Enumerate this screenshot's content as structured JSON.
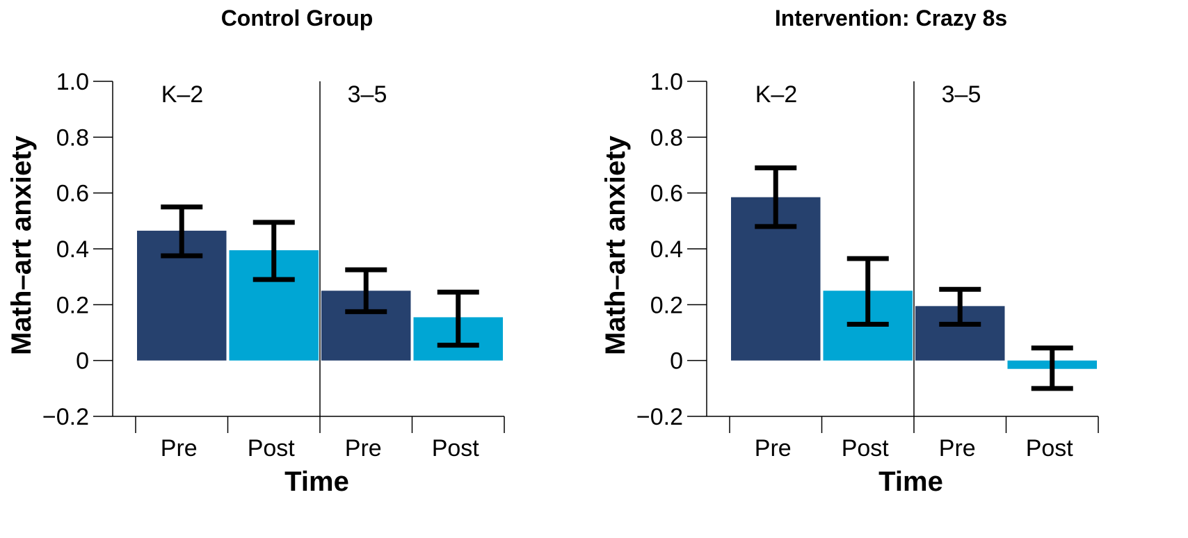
{
  "chart_data": [
    {
      "type": "bar",
      "title": "Control Group",
      "xlabel": "Time",
      "ylabel": "Math–art anxiety",
      "ylim": [
        -0.2,
        1.0
      ],
      "yticks": [
        "1.0",
        "0.8",
        "0.6",
        "0.4",
        "0.2",
        "0",
        "−0.2"
      ],
      "ytick_values": [
        1.0,
        0.8,
        0.6,
        0.4,
        0.2,
        0,
        -0.2
      ],
      "groups": [
        "K–2",
        "3–5"
      ],
      "categories": [
        "Pre",
        "Post",
        "Pre",
        "Post"
      ],
      "values": [
        0.465,
        0.395,
        0.25,
        0.155
      ],
      "error_low": [
        0.375,
        0.29,
        0.175,
        0.055
      ],
      "error_high": [
        0.55,
        0.495,
        0.325,
        0.245
      ],
      "colors": [
        "#26416e",
        "#00a6d4",
        "#26416e",
        "#00a6d4"
      ]
    },
    {
      "type": "bar",
      "title": "Intervention: Crazy 8s",
      "xlabel": "Time",
      "ylabel": "Math–art anxiety",
      "ylim": [
        -0.2,
        1.0
      ],
      "yticks": [
        "1.0",
        "0.8",
        "0.6",
        "0.4",
        "0.2",
        "0",
        "−0.2"
      ],
      "ytick_values": [
        1.0,
        0.8,
        0.6,
        0.4,
        0.2,
        0,
        -0.2
      ],
      "groups": [
        "K–2",
        "3–5"
      ],
      "categories": [
        "Pre",
        "Post",
        "Pre",
        "Post"
      ],
      "values": [
        0.585,
        0.25,
        0.195,
        -0.03
      ],
      "error_low": [
        0.48,
        0.13,
        0.13,
        -0.1
      ],
      "error_high": [
        0.69,
        0.365,
        0.255,
        0.045
      ],
      "colors": [
        "#26416e",
        "#00a6d4",
        "#26416e",
        "#00a6d4"
      ]
    }
  ]
}
